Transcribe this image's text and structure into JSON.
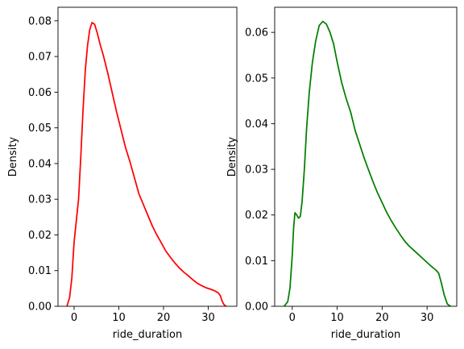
{
  "chart_data": [
    {
      "type": "line",
      "title": "",
      "xlabel": "ride_duration",
      "ylabel": "Density",
      "xlim": [
        -3.6,
        36.4
      ],
      "ylim": [
        0,
        0.0838
      ],
      "xticks": [
        0,
        10,
        20,
        30
      ],
      "yticks": [
        0.0,
        0.01,
        0.02,
        0.03,
        0.04,
        0.05,
        0.06,
        0.07,
        0.08
      ],
      "ytick_decimals": 2,
      "grid": false,
      "series": [
        {
          "color": "#ff0000",
          "x": [
            -1.6,
            -1.0,
            -0.5,
            0.0,
            0.5,
            1.0,
            1.5,
            2.0,
            2.5,
            3.0,
            3.5,
            4.0,
            4.6,
            5.2,
            5.8,
            6.5,
            7.5,
            8.5,
            9.5,
            10.5,
            11.5,
            12.5,
            13.5,
            14.5,
            15.5,
            16.5,
            17.5,
            18.5,
            19.5,
            20.5,
            21.5,
            22.5,
            23.5,
            24.5,
            25.5,
            26.5,
            27.5,
            28.5,
            29.5,
            30.5,
            31.5,
            32.2,
            32.7,
            33.1,
            33.5,
            34.0
          ],
          "y": [
            0.0,
            0.0025,
            0.008,
            0.018,
            0.024,
            0.03,
            0.042,
            0.055,
            0.066,
            0.073,
            0.0775,
            0.0795,
            0.079,
            0.0765,
            0.0735,
            0.0705,
            0.0655,
            0.06,
            0.0545,
            0.0495,
            0.0445,
            0.0405,
            0.036,
            0.0315,
            0.0285,
            0.0255,
            0.0225,
            0.02,
            0.0178,
            0.0155,
            0.0138,
            0.0122,
            0.0108,
            0.0096,
            0.0086,
            0.0075,
            0.0065,
            0.0058,
            0.0052,
            0.0048,
            0.0043,
            0.0038,
            0.003,
            0.0015,
            0.0005,
            0.0
          ]
        }
      ]
    },
    {
      "type": "line",
      "title": "",
      "xlabel": "ride_duration",
      "ylabel": "Density",
      "xlim": [
        -3.9,
        36.6
      ],
      "ylim": [
        0,
        0.0655
      ],
      "xticks": [
        0,
        10,
        20,
        30
      ],
      "yticks": [
        0.0,
        0.01,
        0.02,
        0.03,
        0.04,
        0.05,
        0.06
      ],
      "ytick_decimals": 2,
      "grid": false,
      "series": [
        {
          "color": "#008000",
          "x": [
            -1.8,
            -1.0,
            -0.5,
            0.0,
            0.3,
            0.6,
            1.0,
            1.4,
            1.8,
            2.2,
            2.7,
            3.2,
            3.8,
            4.5,
            5.2,
            6.0,
            6.8,
            7.6,
            8.4,
            9.2,
            10.0,
            11.0,
            12.0,
            13.0,
            14.0,
            15.0,
            16.0,
            17.0,
            18.0,
            19.0,
            20.0,
            21.0,
            22.0,
            23.0,
            24.0,
            25.0,
            26.0,
            27.0,
            28.0,
            29.0,
            30.0,
            31.0,
            32.0,
            32.6,
            33.2,
            33.8,
            34.5,
            35.2
          ],
          "y": [
            0.0,
            0.001,
            0.004,
            0.011,
            0.017,
            0.0205,
            0.02,
            0.0193,
            0.0197,
            0.023,
            0.03,
            0.039,
            0.047,
            0.0535,
            0.058,
            0.0615,
            0.0624,
            0.0618,
            0.06,
            0.0575,
            0.0535,
            0.049,
            0.0455,
            0.0425,
            0.0385,
            0.0355,
            0.0325,
            0.0298,
            0.0272,
            0.0248,
            0.0227,
            0.0206,
            0.0188,
            0.0172,
            0.0157,
            0.0143,
            0.0132,
            0.0123,
            0.0114,
            0.0105,
            0.0096,
            0.0087,
            0.0079,
            0.0072,
            0.005,
            0.0025,
            0.0005,
            0.0
          ]
        }
      ]
    }
  ]
}
